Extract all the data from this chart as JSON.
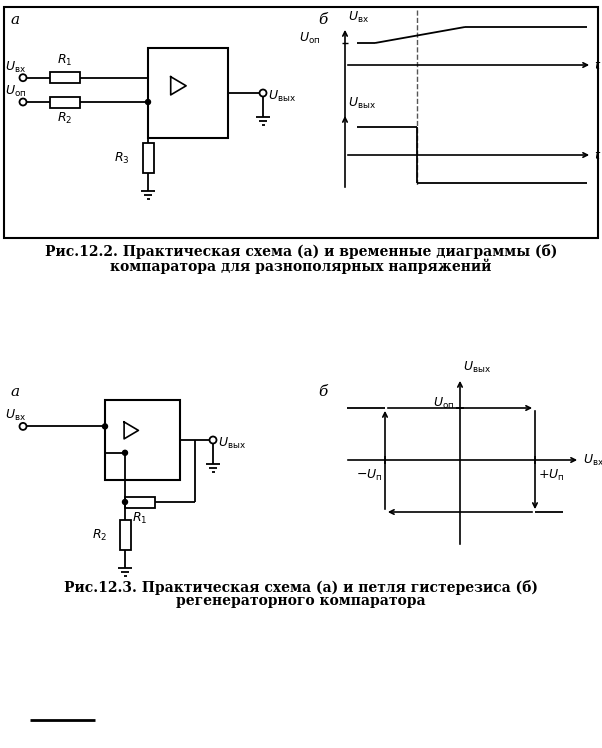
{
  "fig_width": 6.02,
  "fig_height": 7.48,
  "dpi": 100,
  "bg_color": "#ffffff",
  "caption1_line1": "Рис.12.2. Практическая схема (а) и временные диаграммы (б)",
  "caption1_line2": "компаратора для разнополярных напряжений",
  "caption2_line1": "Рис.12.3. Практическая схема (а) и петля гистерезиса (б)",
  "caption2_line2": "регенераторного компаратора"
}
